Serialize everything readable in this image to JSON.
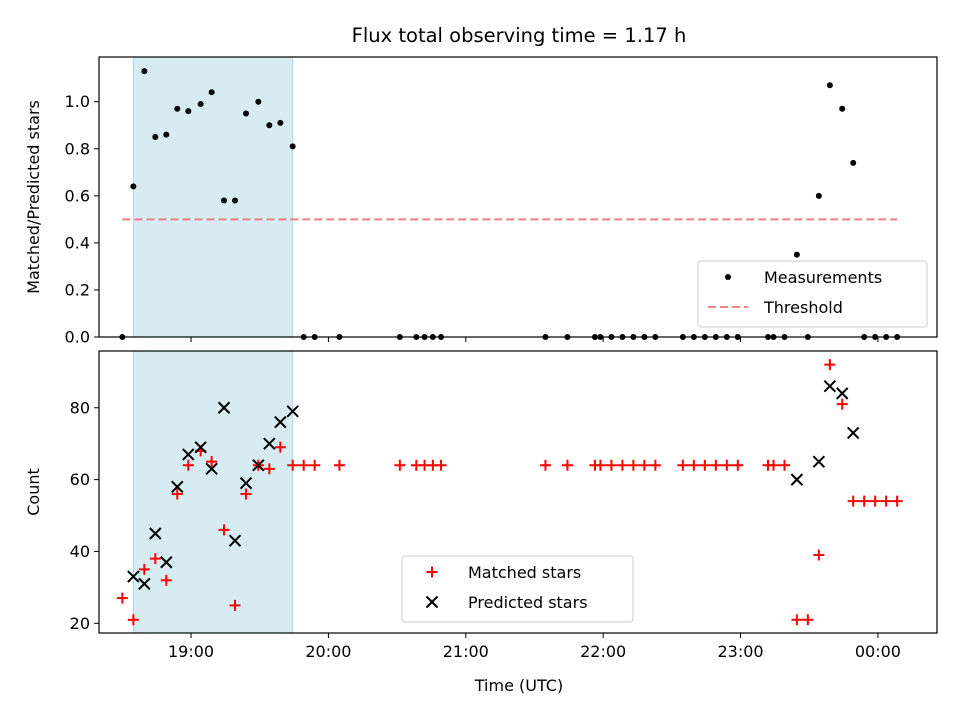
{
  "chart_data": {
    "type": "scatter",
    "title": "Flux total observing time = 1.17 h",
    "xlabel": "Time (UTC)",
    "x_ticks": [
      "19:00",
      "20:00",
      "21:00",
      "22:00",
      "23:00",
      "00:00"
    ],
    "x_tick_hours": [
      19,
      20,
      21,
      22,
      23,
      24
    ],
    "xlim_hours": [
      18.33,
      24.43
    ],
    "shaded_span_hours": [
      18.58,
      19.74
    ],
    "shaded_color": "#add8e6",
    "panels": [
      {
        "ylabel": "Matched/Predicted stars",
        "ylim": [
          0,
          1.19
        ],
        "y_ticks": [
          0.0,
          0.2,
          0.4,
          0.6,
          0.8,
          1.0
        ],
        "y_tick_labels": [
          "0.0",
          "0.2",
          "0.4",
          "0.6",
          "0.8",
          "1.0"
        ],
        "legend_position": "lower right",
        "series": [
          {
            "name": "Measurements",
            "marker": "dot",
            "color": "#000000",
            "points": [
              [
                18.5,
                0.0
              ],
              [
                18.58,
                0.64
              ],
              [
                18.66,
                1.13
              ],
              [
                18.74,
                0.85
              ],
              [
                18.82,
                0.86
              ],
              [
                18.9,
                0.97
              ],
              [
                18.98,
                0.96
              ],
              [
                19.07,
                0.99
              ],
              [
                19.15,
                1.04
              ],
              [
                19.24,
                0.58
              ],
              [
                19.32,
                0.58
              ],
              [
                19.4,
                0.95
              ],
              [
                19.49,
                1.0
              ],
              [
                19.57,
                0.9
              ],
              [
                19.65,
                0.91
              ],
              [
                19.74,
                0.81
              ],
              [
                19.82,
                0.0
              ],
              [
                19.9,
                0.0
              ],
              [
                20.08,
                0.0
              ],
              [
                20.52,
                0.0
              ],
              [
                20.64,
                0.0
              ],
              [
                20.7,
                0.0
              ],
              [
                20.76,
                0.0
              ],
              [
                20.82,
                0.0
              ],
              [
                21.58,
                0.0
              ],
              [
                21.74,
                0.0
              ],
              [
                21.94,
                0.0
              ],
              [
                21.98,
                0.0
              ],
              [
                22.06,
                0.0
              ],
              [
                22.14,
                0.0
              ],
              [
                22.22,
                0.0
              ],
              [
                22.3,
                0.0
              ],
              [
                22.38,
                0.0
              ],
              [
                22.58,
                0.0
              ],
              [
                22.66,
                0.0
              ],
              [
                22.74,
                0.0
              ],
              [
                22.82,
                0.0
              ],
              [
                22.9,
                0.0
              ],
              [
                22.98,
                0.0
              ],
              [
                23.2,
                0.0
              ],
              [
                23.24,
                0.0
              ],
              [
                23.32,
                0.0
              ],
              [
                23.41,
                0.35
              ],
              [
                23.49,
                0.0
              ],
              [
                23.57,
                0.6
              ],
              [
                23.65,
                1.07
              ],
              [
                23.74,
                0.97
              ],
              [
                23.82,
                0.74
              ],
              [
                23.9,
                0.0
              ],
              [
                23.98,
                0.0
              ],
              [
                24.06,
                0.0
              ],
              [
                24.14,
                0.0
              ]
            ]
          },
          {
            "name": "Threshold",
            "marker": "dashed-line",
            "color": "#f08080",
            "points": [
              [
                18.5,
                0.5
              ],
              [
                24.14,
                0.5
              ]
            ]
          }
        ]
      },
      {
        "ylabel": "Count",
        "ylim": [
          17.3,
          95.8
        ],
        "y_ticks": [
          20,
          40,
          60,
          80
        ],
        "y_tick_labels": [
          "20",
          "40",
          "60",
          "80"
        ],
        "legend_position": "lower center",
        "series": [
          {
            "name": "Matched stars",
            "marker": "plus",
            "color": "#ff0000",
            "points": [
              [
                18.5,
                27
              ],
              [
                18.58,
                21
              ],
              [
                18.66,
                35
              ],
              [
                18.74,
                38
              ],
              [
                18.82,
                32
              ],
              [
                18.9,
                56
              ],
              [
                18.98,
                64
              ],
              [
                19.07,
                68
              ],
              [
                19.15,
                65
              ],
              [
                19.24,
                46
              ],
              [
                19.32,
                25
              ],
              [
                19.4,
                56
              ],
              [
                19.49,
                64
              ],
              [
                19.57,
                63
              ],
              [
                19.65,
                69
              ],
              [
                19.74,
                64
              ],
              [
                19.82,
                64
              ],
              [
                19.9,
                64
              ],
              [
                20.08,
                64
              ],
              [
                20.52,
                64
              ],
              [
                20.64,
                64
              ],
              [
                20.7,
                64
              ],
              [
                20.76,
                64
              ],
              [
                20.82,
                64
              ],
              [
                21.58,
                64
              ],
              [
                21.74,
                64
              ],
              [
                21.94,
                64
              ],
              [
                21.98,
                64
              ],
              [
                22.06,
                64
              ],
              [
                22.14,
                64
              ],
              [
                22.22,
                64
              ],
              [
                22.3,
                64
              ],
              [
                22.38,
                64
              ],
              [
                22.58,
                64
              ],
              [
                22.66,
                64
              ],
              [
                22.74,
                64
              ],
              [
                22.82,
                64
              ],
              [
                22.9,
                64
              ],
              [
                22.98,
                64
              ],
              [
                23.2,
                64
              ],
              [
                23.24,
                64
              ],
              [
                23.32,
                64
              ],
              [
                23.41,
                21
              ],
              [
                23.49,
                21
              ],
              [
                23.57,
                39
              ],
              [
                23.65,
                92
              ],
              [
                23.74,
                81
              ],
              [
                23.82,
                54
              ],
              [
                23.9,
                54
              ],
              [
                23.98,
                54
              ],
              [
                24.06,
                54
              ],
              [
                24.14,
                54
              ]
            ]
          },
          {
            "name": "Predicted stars",
            "marker": "x",
            "color": "#000000",
            "points": [
              [
                18.58,
                33
              ],
              [
                18.66,
                31
              ],
              [
                18.74,
                45
              ],
              [
                18.82,
                37
              ],
              [
                18.9,
                58
              ],
              [
                18.98,
                67
              ],
              [
                19.07,
                69
              ],
              [
                19.15,
                63
              ],
              [
                19.24,
                80
              ],
              [
                19.32,
                43
              ],
              [
                19.4,
                59
              ],
              [
                19.49,
                64
              ],
              [
                19.57,
                70
              ],
              [
                19.65,
                76
              ],
              [
                19.74,
                79
              ],
              [
                23.41,
                60
              ],
              [
                23.57,
                65
              ],
              [
                23.65,
                86
              ],
              [
                23.74,
                84
              ],
              [
                23.82,
                73
              ]
            ]
          }
        ]
      }
    ]
  }
}
